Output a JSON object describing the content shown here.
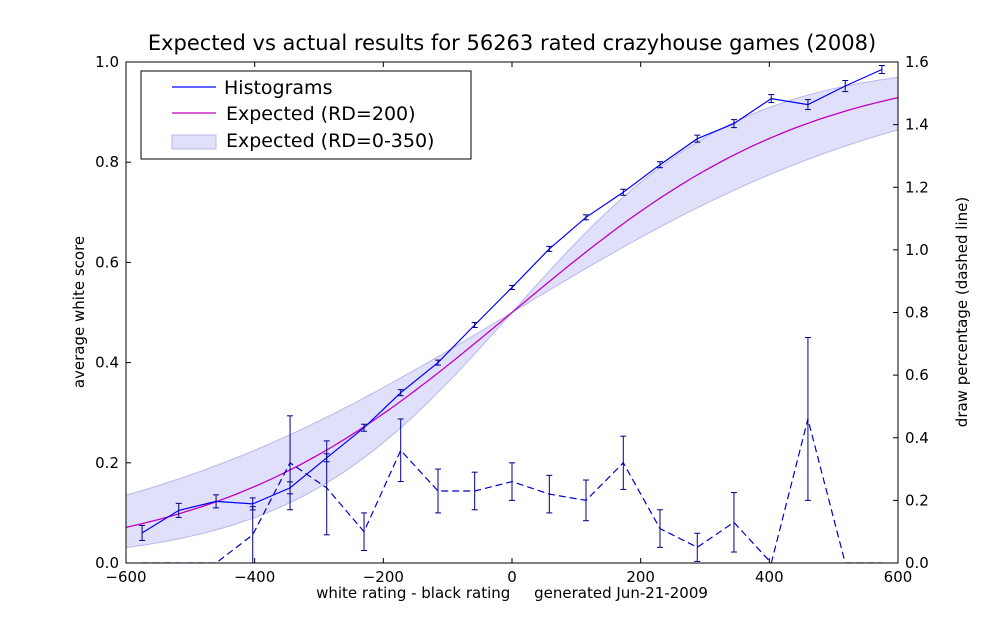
{
  "chart_data": {
    "type": "line",
    "title": "Expected vs actual results for 56263 rated crazyhouse games (2008)",
    "xlabel": "white rating - black rating     generated Jun-21-2009",
    "ylabel_left": "average white score",
    "ylabel_right": "draw percentage (dashed line)",
    "xlim": [
      -600,
      600
    ],
    "ylim_left": [
      0,
      1
    ],
    "ylim_right": [
      0,
      1.6
    ],
    "x_ticks": [
      -600,
      -400,
      -200,
      0,
      200,
      400,
      600
    ],
    "x_tick_labels": [
      "−600",
      "−400",
      "−200",
      "0",
      "200",
      "400",
      "600"
    ],
    "y_left_ticks": [
      0,
      0.2,
      0.4,
      0.6,
      0.8,
      1.0
    ],
    "y_left_tick_labels": [
      "0.0",
      "0.2",
      "0.4",
      "0.6",
      "0.8",
      "1.0"
    ],
    "y_right_ticks": [
      0,
      0.2,
      0.4,
      0.6,
      0.8,
      1.0,
      1.2,
      1.4,
      1.6
    ],
    "y_right_tick_labels": [
      "0.0",
      "0.2",
      "0.4",
      "0.6",
      "0.8",
      "1.0",
      "1.2",
      "1.4",
      "1.6"
    ],
    "grid": false,
    "legend_position": "top-left",
    "legend": [
      "Histograms",
      "Expected (RD=200)",
      "Expected (RD=0-350)"
    ],
    "colors": {
      "histograms": "#0000ff",
      "expected": "#bf00bf",
      "band_fill": "#e0e0fa",
      "band_edge": "#b8b8ec",
      "draw": "#0000cc",
      "errorbar": "#00008b"
    },
    "series": [
      {
        "name": "Histograms",
        "axis": "left",
        "style": "solid",
        "x": [
          -575,
          -518,
          -460,
          -403,
          -345,
          -288,
          -230,
          -173,
          -115,
          -58,
          0,
          58,
          115,
          173,
          230,
          288,
          345,
          403,
          460,
          518,
          575
        ],
        "y": [
          0.06,
          0.105,
          0.123,
          0.118,
          0.15,
          0.21,
          0.27,
          0.34,
          0.4,
          0.475,
          0.55,
          0.627,
          0.69,
          0.74,
          0.795,
          0.847,
          0.877,
          0.927,
          0.915,
          0.952,
          0.985
        ],
        "err": [
          0.015,
          0.014,
          0.013,
          0.012,
          0.012,
          0.008,
          0.007,
          0.006,
          0.005,
          0.005,
          0.004,
          0.005,
          0.005,
          0.006,
          0.006,
          0.007,
          0.008,
          0.008,
          0.01,
          0.011,
          0.008
        ]
      },
      {
        "name": "draw percentage",
        "axis": "right",
        "style": "dashed",
        "x": [
          -575,
          -518,
          -460,
          -403,
          -345,
          -288,
          -230,
          -173,
          -115,
          -58,
          0,
          58,
          115,
          173,
          230,
          288,
          345,
          403,
          460,
          518,
          575
        ],
        "y": [
          0,
          0,
          0,
          0.09,
          0.32,
          0.24,
          0.1,
          0.36,
          0.23,
          0.23,
          0.26,
          0.22,
          0.2,
          0.32,
          0.11,
          0.05,
          0.13,
          0,
          0.46,
          0,
          0
        ],
        "err": [
          0,
          0,
          0,
          0.09,
          0.15,
          0.15,
          0.06,
          0.1,
          0.07,
          0.06,
          0.06,
          0.06,
          0.065,
          0.085,
          0.06,
          0.045,
          0.095,
          0,
          0.26,
          0,
          0
        ]
      }
    ],
    "expected_curve": {
      "name": "Expected (RD=200)",
      "axis": "left",
      "rd": 200,
      "formula": "logistic"
    },
    "expected_band": {
      "name": "Expected (RD=0-350)",
      "axis": "left",
      "rd_range": [
        0,
        350
      ]
    }
  }
}
